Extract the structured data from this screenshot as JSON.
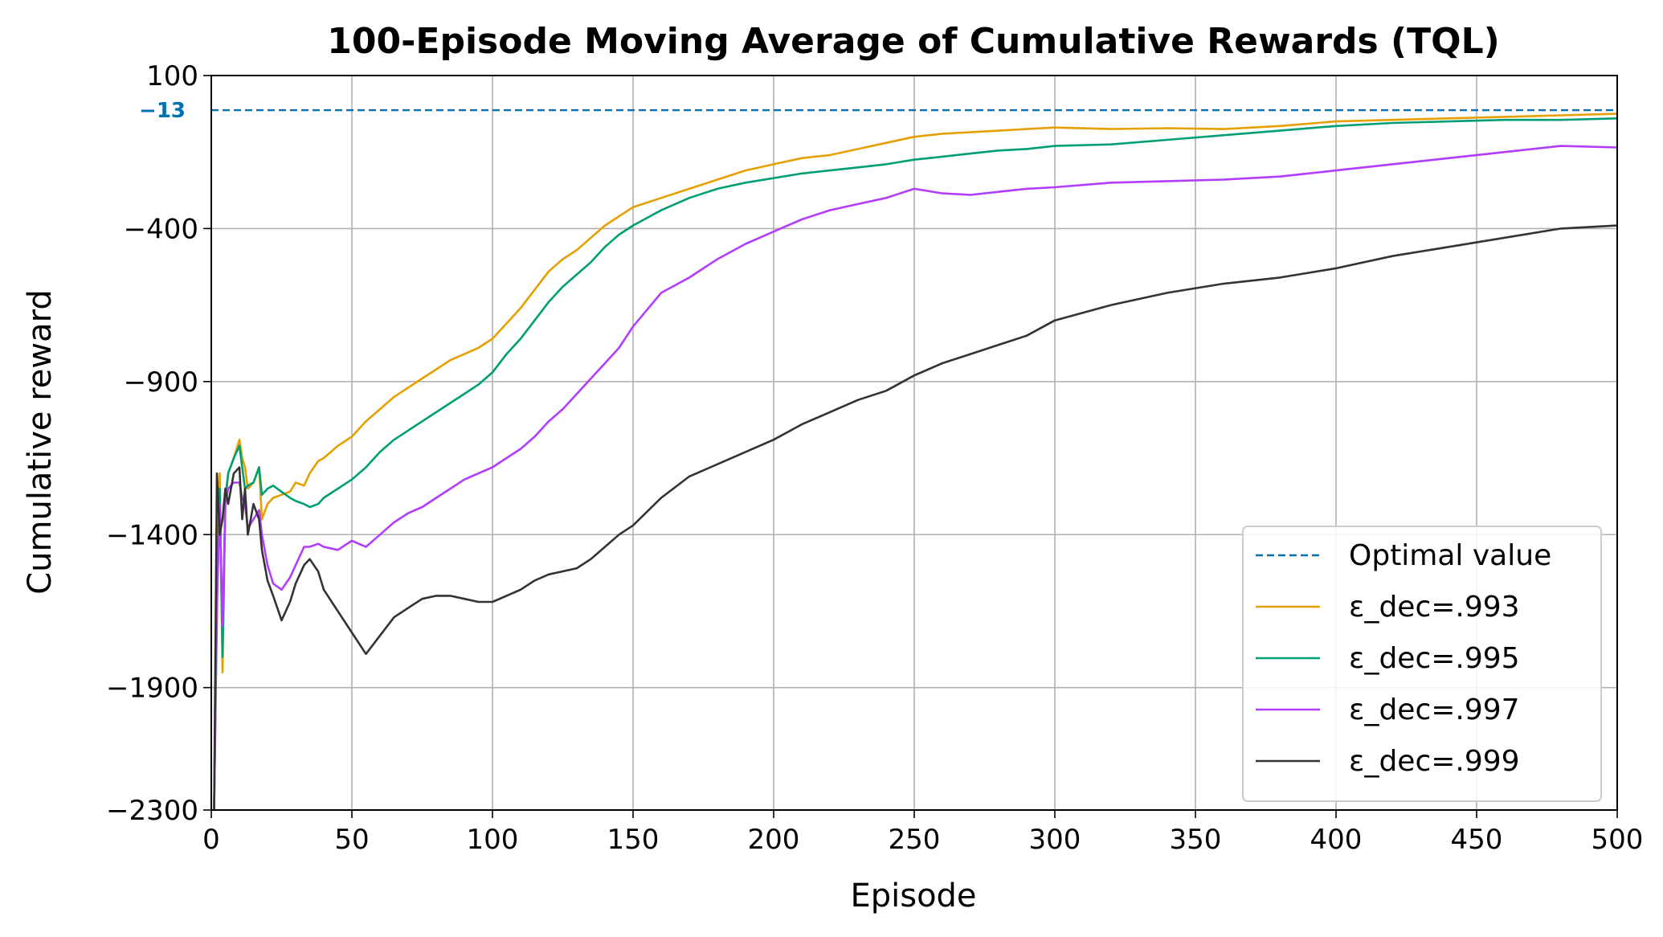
{
  "chart_data": {
    "type": "line",
    "title": "100-Episode Moving Average of Cumulative Rewards (TQL)",
    "xlabel": "Episode",
    "ylabel": "Cumulative reward",
    "xlim": [
      0,
      500
    ],
    "ylim": [
      -2300,
      100
    ],
    "x_ticks": [
      0,
      50,
      100,
      150,
      200,
      250,
      300,
      350,
      400,
      450,
      500
    ],
    "y_ticks": [
      100,
      -400,
      -900,
      -1400,
      -1900,
      -2300
    ],
    "x_tick_labels": [
      "0",
      "50",
      "100",
      "150",
      "200",
      "250",
      "300",
      "350",
      "400",
      "450",
      "500"
    ],
    "y_tick_labels": [
      "100",
      "−400",
      "−900",
      "−1400",
      "−1900",
      "−2300"
    ],
    "grid": true,
    "legend_position": "lower right",
    "reference_line": {
      "name": "Optimal value",
      "value": -13,
      "label": "−13",
      "color": "#0072B2",
      "style": "dashed"
    },
    "series": [
      {
        "name": "ε_dec=.993",
        "color": "#E69F00",
        "x": [
          1,
          2,
          3,
          4,
          5,
          6,
          8,
          10,
          11,
          12,
          13,
          15,
          17,
          18,
          20,
          22,
          25,
          28,
          30,
          33,
          35,
          38,
          40,
          45,
          50,
          55,
          60,
          65,
          70,
          75,
          80,
          85,
          90,
          95,
          100,
          105,
          110,
          115,
          120,
          125,
          130,
          135,
          140,
          145,
          150,
          160,
          170,
          180,
          190,
          200,
          210,
          220,
          230,
          240,
          250,
          260,
          270,
          280,
          290,
          300,
          320,
          340,
          360,
          380,
          400,
          420,
          440,
          460,
          480,
          500
        ],
        "y": [
          -2300,
          -1550,
          -1200,
          -1850,
          -1300,
          -1200,
          -1150,
          -1090,
          -1150,
          -1180,
          -1250,
          -1230,
          -1180,
          -1350,
          -1300,
          -1280,
          -1270,
          -1260,
          -1230,
          -1240,
          -1200,
          -1160,
          -1150,
          -1110,
          -1080,
          -1030,
          -990,
          -950,
          -920,
          -890,
          -860,
          -830,
          -810,
          -790,
          -760,
          -710,
          -660,
          -600,
          -540,
          -500,
          -470,
          -430,
          -390,
          -360,
          -330,
          -300,
          -270,
          -240,
          -210,
          -190,
          -170,
          -160,
          -140,
          -120,
          -100,
          -90,
          -85,
          -80,
          -75,
          -70,
          -75,
          -72,
          -75,
          -65,
          -50,
          -45,
          -40,
          -35,
          -30,
          -25
        ]
      },
      {
        "name": "ε_dec=.995",
        "color": "#009E73",
        "x": [
          1,
          2,
          3,
          4,
          5,
          6,
          8,
          10,
          11,
          12,
          13,
          15,
          17,
          18,
          20,
          22,
          25,
          28,
          30,
          33,
          35,
          38,
          40,
          45,
          50,
          55,
          60,
          65,
          70,
          75,
          80,
          85,
          90,
          95,
          100,
          105,
          110,
          115,
          120,
          125,
          130,
          135,
          140,
          145,
          150,
          160,
          170,
          180,
          190,
          200,
          210,
          220,
          230,
          240,
          250,
          260,
          270,
          280,
          290,
          300,
          320,
          340,
          360,
          380,
          400,
          420,
          440,
          460,
          480,
          500
        ],
        "y": [
          -2300,
          -1650,
          -1250,
          -1800,
          -1280,
          -1200,
          -1150,
          -1110,
          -1180,
          -1250,
          -1240,
          -1230,
          -1180,
          -1270,
          -1250,
          -1240,
          -1260,
          -1280,
          -1290,
          -1300,
          -1310,
          -1300,
          -1280,
          -1250,
          -1220,
          -1180,
          -1130,
          -1090,
          -1060,
          -1030,
          -1000,
          -970,
          -940,
          -910,
          -870,
          -810,
          -760,
          -700,
          -640,
          -590,
          -550,
          -510,
          -460,
          -420,
          -390,
          -340,
          -300,
          -270,
          -250,
          -235,
          -220,
          -210,
          -200,
          -190,
          -175,
          -165,
          -155,
          -145,
          -140,
          -130,
          -125,
          -110,
          -95,
          -80,
          -65,
          -55,
          -50,
          -45,
          -45,
          -40
        ]
      },
      {
        "name": "ε_dec=.997",
        "color": "#B23CFF",
        "x": [
          1,
          2,
          3,
          4,
          5,
          6,
          8,
          10,
          11,
          12,
          13,
          15,
          17,
          18,
          20,
          22,
          25,
          28,
          30,
          33,
          35,
          38,
          40,
          45,
          50,
          55,
          60,
          65,
          70,
          75,
          80,
          85,
          90,
          95,
          100,
          105,
          110,
          115,
          120,
          125,
          130,
          135,
          140,
          145,
          150,
          160,
          170,
          180,
          190,
          200,
          210,
          220,
          230,
          240,
          250,
          260,
          270,
          280,
          290,
          300,
          320,
          340,
          360,
          380,
          400,
          420,
          440,
          460,
          480,
          500
        ],
        "y": [
          -2300,
          -1620,
          -1300,
          -1700,
          -1300,
          -1250,
          -1230,
          -1230,
          -1280,
          -1300,
          -1380,
          -1350,
          -1320,
          -1400,
          -1500,
          -1560,
          -1580,
          -1540,
          -1500,
          -1440,
          -1440,
          -1430,
          -1440,
          -1450,
          -1420,
          -1440,
          -1400,
          -1360,
          -1330,
          -1310,
          -1280,
          -1250,
          -1220,
          -1200,
          -1180,
          -1150,
          -1120,
          -1080,
          -1030,
          -990,
          -940,
          -890,
          -840,
          -790,
          -720,
          -610,
          -560,
          -500,
          -450,
          -410,
          -370,
          -340,
          -320,
          -300,
          -270,
          -285,
          -290,
          -280,
          -270,
          -265,
          -250,
          -245,
          -240,
          -230,
          -210,
          -190,
          -170,
          -150,
          -130,
          -135
        ]
      },
      {
        "name": "ε_dec=.999",
        "color": "#333333",
        "x": [
          1,
          2,
          3,
          4,
          5,
          6,
          8,
          10,
          11,
          12,
          13,
          15,
          17,
          18,
          20,
          22,
          25,
          28,
          30,
          33,
          35,
          38,
          40,
          45,
          50,
          55,
          60,
          65,
          70,
          75,
          80,
          85,
          90,
          95,
          100,
          105,
          110,
          115,
          120,
          125,
          130,
          135,
          140,
          145,
          150,
          160,
          170,
          180,
          190,
          200,
          210,
          220,
          230,
          240,
          250,
          260,
          270,
          280,
          290,
          300,
          320,
          340,
          360,
          380,
          400,
          420,
          440,
          460,
          480,
          500
        ],
        "y": [
          -2300,
          -1200,
          -1400,
          -1350,
          -1250,
          -1300,
          -1200,
          -1180,
          -1350,
          -1250,
          -1400,
          -1300,
          -1350,
          -1450,
          -1550,
          -1600,
          -1680,
          -1620,
          -1560,
          -1500,
          -1480,
          -1520,
          -1580,
          -1650,
          -1720,
          -1790,
          -1730,
          -1670,
          -1640,
          -1610,
          -1600,
          -1600,
          -1610,
          -1620,
          -1620,
          -1600,
          -1580,
          -1550,
          -1530,
          -1520,
          -1510,
          -1480,
          -1440,
          -1400,
          -1370,
          -1280,
          -1210,
          -1170,
          -1130,
          -1090,
          -1040,
          -1000,
          -960,
          -930,
          -880,
          -840,
          -810,
          -780,
          -750,
          -700,
          -650,
          -610,
          -580,
          -560,
          -530,
          -490,
          -460,
          -430,
          -400,
          -390
        ]
      }
    ]
  }
}
